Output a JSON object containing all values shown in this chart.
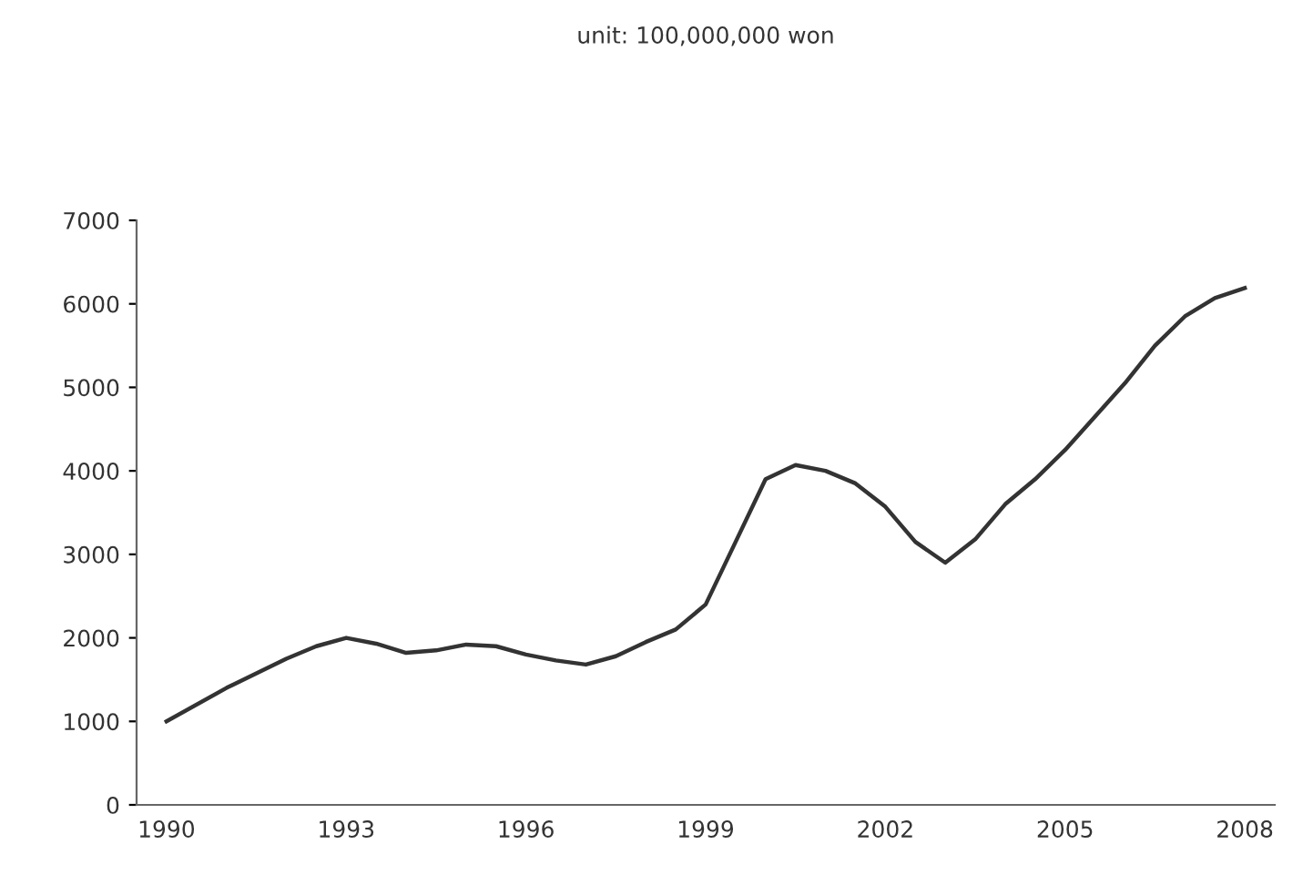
{
  "chart_data": {
    "type": "line",
    "title": "unit: 100,000,000 won",
    "x": [
      1990,
      1991,
      1992,
      1992.5,
      1993,
      1993.5,
      1994,
      1994.5,
      1995,
      1995.5,
      1996,
      1996.5,
      1997,
      1997.5,
      1998,
      1998.5,
      1999,
      1999.5,
      2000,
      2000.5,
      2001,
      2001.5,
      2002,
      2002.5,
      2003,
      2003.5,
      2004,
      2004.5,
      2005,
      2006,
      2006.5,
      2007,
      2007.5,
      2008
    ],
    "series": [
      {
        "color": "#333333",
        "values": [
          1000,
          1400,
          1750,
          1900,
          2000,
          1930,
          1820,
          1850,
          1920,
          1900,
          1800,
          1730,
          1680,
          1780,
          1950,
          2100,
          2400,
          3150,
          3900,
          4070,
          4000,
          3850,
          3570,
          3150,
          2900,
          3180,
          3600,
          3900,
          4250,
          5050,
          5500,
          5850,
          6070,
          6190
        ]
      }
    ],
    "xlim": [
      1989.5,
      2008.5
    ],
    "xticks": [
      1990,
      1993,
      1996,
      1999,
      2002,
      2005,
      2008
    ],
    "ylim": [
      0,
      7000
    ],
    "yticks": [
      0,
      1000,
      2000,
      3000,
      4000,
      5000,
      6000,
      7000
    ],
    "grid": false,
    "legend": false,
    "marker": "none",
    "line_style": "solid"
  }
}
